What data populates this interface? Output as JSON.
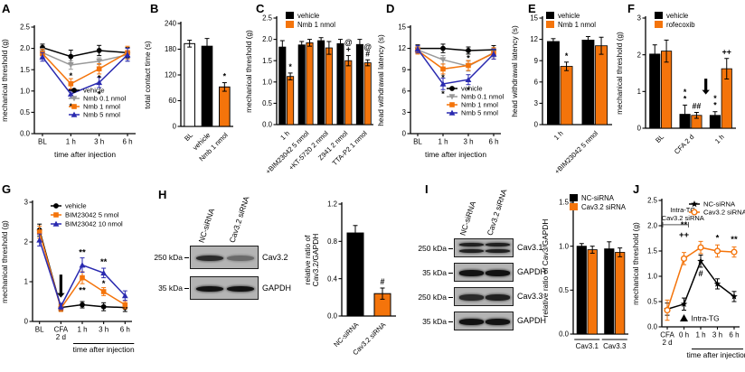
{
  "colors": {
    "orange": "#f4740b",
    "blue": "#2a2ab0",
    "gray": "#999999",
    "black": "#000000"
  },
  "chart_data": [
    {
      "panel": "A",
      "type": "line",
      "categories": [
        "BL",
        "1 h",
        "3 h",
        "6 h"
      ],
      "xlabel": "time after injection",
      "ylabel": "mechanical threshold (g)",
      "ylim": [
        0,
        2.5
      ],
      "yticks": [
        0,
        0.5,
        1,
        1.5,
        2,
        2.5
      ],
      "ydec": 1,
      "series": [
        {
          "name": "vehicle",
          "color": "#000000",
          "marker": "circle",
          "values": [
            2.02,
            1.81,
            1.95,
            1.9
          ],
          "errors": [
            0.08,
            0.15,
            0.12,
            0.12
          ]
        },
        {
          "name": "Nmb 0.1 nmol",
          "color": "#999999",
          "marker": "tridown",
          "values": [
            1.9,
            1.61,
            1.7,
            1.85
          ],
          "errors": [
            0.1,
            0.1,
            0.08,
            0.15
          ]
        },
        {
          "name": "Nmb 1 nmol",
          "color": "#f4740b",
          "marker": "square",
          "values": [
            1.88,
            1.17,
            1.52,
            1.9
          ],
          "errors": [
            0.1,
            0.12,
            0.12,
            0.15
          ]
        },
        {
          "name": "Nmb 5 nmol",
          "color": "#2a2ab0",
          "marker": "triangle",
          "values": [
            1.8,
            0.93,
            1.2,
            1.85
          ],
          "errors": [
            0.1,
            0.1,
            0.12,
            0.15
          ]
        }
      ],
      "annotations": [
        {
          "x": 1,
          "y": 1.36,
          "text": "*"
        },
        {
          "x": 1,
          "y": 0.64,
          "text": "*"
        },
        {
          "x": 2,
          "y": 1.3,
          "text": "*"
        },
        {
          "x": 2,
          "y": 0.92,
          "text": "*"
        }
      ]
    },
    {
      "panel": "B",
      "type": "bar",
      "categories": [
        "BL",
        "vehicle",
        "Nmb 1 nmol"
      ],
      "values": [
        193,
        187,
        92
      ],
      "errors": [
        8,
        18,
        10
      ],
      "bar_colors": [
        "#ffffff",
        "#000000",
        "#f4740b"
      ],
      "ylabel": "total contact time (s)",
      "ylim": [
        0,
        240
      ],
      "yticks": [
        0,
        60,
        120,
        180,
        240
      ],
      "ydec": 0,
      "annotations": [
        {
          "cat": 0,
          "series": 0,
          "lines": []
        },
        {
          "cat": 2,
          "series": 0,
          "lines": [
            "*"
          ]
        }
      ]
    },
    {
      "panel": "C",
      "type": "grouped_bar",
      "categories": [
        "1 h",
        "+BIM23042 5 nmol",
        "+KT-5720 2 nmol",
        "Z941 2 nmol",
        "TTA-P2 1 nmol"
      ],
      "series": [
        {
          "name": "vehicle",
          "color": "#000000",
          "values": [
            1.82,
            1.87,
            1.97,
            1.9,
            1.88
          ],
          "errors": [
            0.15,
            0.08,
            0.07,
            0.1,
            0.12
          ]
        },
        {
          "name": "Nmb 1 nmol",
          "color": "#f4740b",
          "values": [
            1.13,
            1.92,
            1.8,
            1.5,
            1.45
          ],
          "errors": [
            0.08,
            0.08,
            0.15,
            0.12,
            0.07
          ]
        }
      ],
      "ylabel": "mechanical threshold (g)",
      "ylim": [
        0,
        2.5
      ],
      "yticks": [
        0,
        0.5,
        1,
        1.5,
        2,
        2.5
      ],
      "ydec": 1,
      "annotations": [
        {
          "cat": 0,
          "series": 1,
          "lines": [
            "*"
          ]
        },
        {
          "cat": 3,
          "series": 1,
          "lines": [
            "@",
            "+"
          ]
        },
        {
          "cat": 4,
          "series": 1,
          "lines": [
            "@",
            "#"
          ]
        }
      ]
    },
    {
      "panel": "D",
      "type": "line",
      "categories": [
        "BL",
        "1 h",
        "3 h",
        "6 h"
      ],
      "xlabel": "time after injection",
      "ylabel": "head withdrawal latency (s)",
      "ylim": [
        0,
        15
      ],
      "yticks": [
        0,
        3,
        6,
        9,
        12,
        15
      ],
      "ydec": 0,
      "series": [
        {
          "name": "vehicle",
          "color": "#000000",
          "marker": "circle",
          "values": [
            12,
            12,
            11.7,
            11.8
          ],
          "errors": [
            0.5,
            0.6,
            0.5,
            0.6
          ]
        },
        {
          "name": "Nmb 0.1 nmol",
          "color": "#999999",
          "marker": "tridown",
          "values": [
            11.8,
            10.4,
            9.5,
            11.4
          ],
          "errors": [
            0.5,
            0.6,
            0.7,
            0.6
          ]
        },
        {
          "name": "Nmb 1 nmol",
          "color": "#f4740b",
          "marker": "square",
          "values": [
            11.7,
            9.1,
            9.6,
            11.3
          ],
          "errors": [
            0.5,
            0.7,
            0.7,
            0.8
          ]
        },
        {
          "name": "Nmb 5 nmol",
          "color": "#2a2ab0",
          "marker": "triangle",
          "values": [
            11.9,
            7,
            7.6,
            11.2
          ],
          "errors": [
            0.5,
            0.8,
            0.7,
            0.7
          ]
        }
      ],
      "annotations": [
        {
          "x": 1,
          "y": 7.9,
          "text": "*"
        },
        {
          "x": 1,
          "y": 5.6,
          "text": "*"
        },
        {
          "x": 2,
          "y": 10.6,
          "text": "*"
        },
        {
          "x": 2,
          "y": 6.1,
          "text": "*"
        }
      ]
    },
    {
      "panel": "E",
      "type": "grouped_bar",
      "categories": [
        "1 h",
        "+BIM23042 5 nmol"
      ],
      "series": [
        {
          "name": "vehicle",
          "color": "#000000",
          "values": [
            11.7,
            11.9
          ],
          "errors": [
            0.4,
            0.5
          ]
        },
        {
          "name": "Nmb 1 nmol",
          "color": "#f4740b",
          "values": [
            8.2,
            11.1
          ],
          "errors": [
            0.6,
            1.2
          ]
        }
      ],
      "ylabel": "head withdrawal latency (s)",
      "ylim": [
        0,
        15
      ],
      "yticks": [
        0,
        3,
        6,
        9,
        12,
        15
      ],
      "ydec": 0,
      "annotations": [
        {
          "cat": 0,
          "series": 1,
          "lines": [
            "*"
          ]
        }
      ]
    },
    {
      "panel": "F",
      "type": "grouped_bar",
      "categories": [
        "BL",
        "CFA 2 d",
        "1 h"
      ],
      "series": [
        {
          "name": "vehicle",
          "color": "#000000",
          "values": [
            2.02,
            0.38,
            0.35
          ],
          "errors": [
            0.25,
            0.25,
            0.1
          ]
        },
        {
          "name": "rofecoxib",
          "color": "#f4740b",
          "values": [
            2.1,
            0.35,
            1.62
          ],
          "errors": [
            0.3,
            0.08,
            0.28
          ]
        }
      ],
      "ylabel": "mechanical threshold (g)",
      "ylim": [
        0,
        3
      ],
      "yticks": [
        0,
        1,
        2,
        3
      ],
      "ydec": 0,
      "annotations": [
        {
          "cat": 1,
          "series": 0,
          "lines": [
            "*",
            "*"
          ]
        },
        {
          "cat": 1,
          "series": 1,
          "lines": [
            "##"
          ]
        },
        {
          "cat": 2,
          "series": 0,
          "lines": [
            "*",
            "*"
          ]
        },
        {
          "cat": 2,
          "series": 1,
          "lines": [
            "++"
          ]
        }
      ],
      "arrow": {
        "between": [
          1,
          2
        ],
        "y_from": 1.35,
        "y_to": 0.92
      }
    },
    {
      "panel": "G",
      "type": "line",
      "categories": [
        "BL",
        "CFA\n2 d",
        "1 h",
        "3 h",
        "6 h"
      ],
      "xlabel": "time after injection",
      "xlabel_span": [
        2,
        4
      ],
      "ylabel": "mechanical threshold (g)",
      "ylim": [
        0,
        3
      ],
      "yticks": [
        0,
        1,
        2,
        3
      ],
      "ydec": 0,
      "series": [
        {
          "name": "vehicle",
          "color": "#000000",
          "marker": "circle",
          "values": [
            2.3,
            0.35,
            0.42,
            0.37,
            0.35
          ],
          "errors": [
            0.15,
            0.08,
            0.08,
            0.1,
            0.1
          ]
        },
        {
          "name": "BIM23042 5 nmol",
          "color": "#f4740b",
          "marker": "square",
          "values": [
            2.25,
            0.33,
            1.1,
            0.75,
            0.42
          ],
          "errors": [
            0.15,
            0.08,
            0.15,
            0.1,
            0.1
          ]
        },
        {
          "name": "BIM23042 10 nmol",
          "color": "#2a2ab0",
          "marker": "triangle",
          "values": [
            2.05,
            0.38,
            1.42,
            1.22,
            0.65
          ],
          "errors": [
            0.15,
            0.08,
            0.18,
            0.12,
            0.12
          ]
        }
      ],
      "annotations": [
        {
          "x": 2,
          "y": 1.74,
          "text": "**"
        },
        {
          "x": 2,
          "y": 0.78,
          "text": "**"
        },
        {
          "x": 3,
          "y": 1.5,
          "text": "**"
        },
        {
          "x": 3,
          "y": 0.95,
          "text": "*"
        }
      ],
      "arrow": {
        "x": 1,
        "y_from": 1.18,
        "y_to": 0.6
      }
    },
    {
      "panel": "H",
      "type": "blot_bar",
      "blot": {
        "lanes": [
          "NC-siRNA",
          "Cav3.2 siRNA"
        ],
        "rows": [
          {
            "marker": "250 kDa",
            "label": "Cav3.2",
            "bands": [
              0.85,
              0.45
            ]
          },
          {
            "marker": "35 kDa",
            "label": "GAPDH",
            "bands": [
              1,
              1
            ]
          }
        ]
      },
      "bar": {
        "categories": [
          "NC-siRNA",
          "Cav3.2 siRNA"
        ],
        "values": [
          0.89,
          0.24
        ],
        "errors": [
          0.08,
          0.06
        ],
        "bar_colors": [
          "#000000",
          "#f4740b"
        ],
        "ylabel": [
          "relative ratio of",
          "Cav3.2/GAPDH"
        ],
        "ylim": [
          0,
          1.2
        ],
        "yticks": [
          0,
          0.4,
          0.8,
          1.2
        ],
        "ydec": 1,
        "annotations": [
          {
            "cat": 1,
            "series": 0,
            "lines": [
              "#"
            ]
          }
        ]
      }
    },
    {
      "panel": "I",
      "type": "blot_bar",
      "blot": {
        "lanes": [
          "NC-siRNA",
          "Cav3.2 siRNA"
        ],
        "rows": [
          {
            "marker": "250 kDa",
            "label": "Cav3.1",
            "bands": [
              0.9,
              0.9
            ],
            "double": true
          },
          {
            "marker": "35 kDa",
            "label": "GAPDH",
            "bands": [
              1,
              1
            ]
          },
          {
            "marker": "250 kDa",
            "label": "Cav3.3",
            "bands": [
              0.85,
              0.9
            ]
          },
          {
            "marker": "35 kDa",
            "label": "GAPDH",
            "bands": [
              1,
              1
            ]
          }
        ]
      },
      "bar": {
        "type": "grouped",
        "categories": [
          "Cav3.1",
          "Cav3.3"
        ],
        "series": [
          {
            "name": "NC-siRNA",
            "color": "#000000",
            "values": [
              1.0,
              0.97
            ],
            "errors": [
              0.03,
              0.08
            ]
          },
          {
            "name": "Cav3.2 siRNA",
            "color": "#f4740b",
            "values": [
              0.96,
              0.93
            ],
            "errors": [
              0.04,
              0.05
            ]
          }
        ],
        "ylabel": "relative ratio of Cav3/GAPDH",
        "ylim": [
          0,
          1.5
        ],
        "yticks": [
          0,
          0.5,
          1,
          1.5
        ],
        "ydec": 1,
        "annotations": []
      }
    },
    {
      "panel": "J",
      "type": "line",
      "categories": [
        "CFA\n2 d",
        "0 h",
        "1 h",
        "3 h",
        "6 h"
      ],
      "xlabel": "time after injection",
      "xlabel_span": [
        2,
        4
      ],
      "ylabel": "mechanical threshold (g)",
      "ylim": [
        0,
        2.5
      ],
      "yticks": [
        0,
        0.5,
        1,
        1.5,
        2,
        2.5
      ],
      "ydec": 1,
      "series": [
        {
          "name": "NC-siRNA",
          "color": "#000000",
          "marker": "star",
          "values": [
            0.35,
            0.45,
            1.3,
            0.85,
            0.6
          ],
          "errors": [
            0.12,
            0.12,
            0.12,
            0.1,
            0.1
          ]
        },
        {
          "name": "Cav3.2 siRNA",
          "color": "#f4740b",
          "marker": "circleopen",
          "values": [
            0.33,
            1.35,
            1.57,
            1.5,
            1.48
          ],
          "errors": [
            0.2,
            0.12,
            0.12,
            0.12,
            0.1
          ]
        }
      ],
      "annotations": [
        {
          "x": 1,
          "y": 2.02,
          "text": "**"
        },
        {
          "x": 1,
          "y": 1.82,
          "text": "++"
        },
        {
          "x": 2,
          "y": 1.05,
          "text": "#"
        },
        {
          "x": 3,
          "y": 1.76,
          "text": "*"
        },
        {
          "x": 4,
          "y": 1.73,
          "text": "**"
        }
      ],
      "intra_tg": {
        "x": 1,
        "y": 0.16,
        "label": "Intra-TG"
      },
      "top_note": {
        "lines": [
          "Intra-TG",
          "Cav3.2 siRNA"
        ],
        "span": [
          0,
          1
        ],
        "bracket_y": 2.02
      }
    }
  ]
}
